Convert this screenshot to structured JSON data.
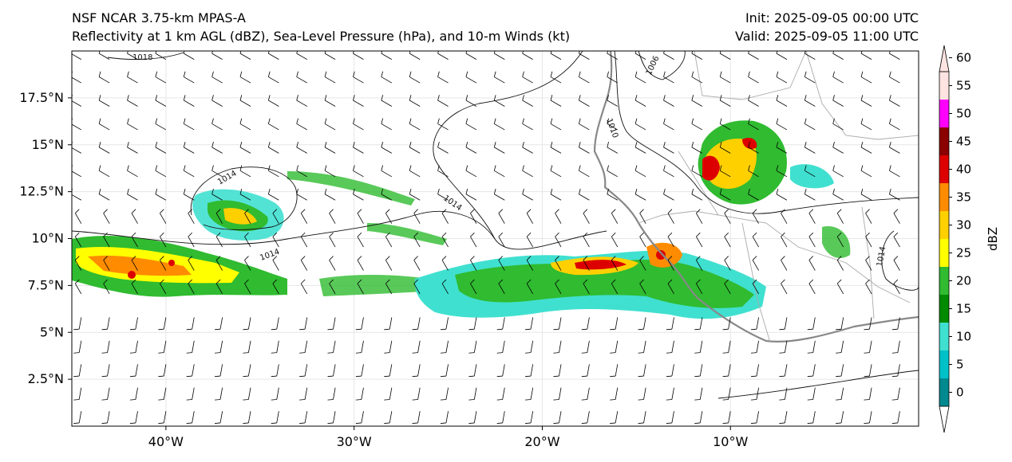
{
  "header": {
    "title_left_line1": "NSF NCAR 3.75-km MPAS-A",
    "title_left_line2": "Reflectivity at 1 km AGL (dBZ), Sea-Level Pressure (hPa), and 10-m Winds (kt)",
    "title_right_line1": "Init: 2025-09-05 00:00 UTC",
    "title_right_line2": "Valid: 2025-09-05 11:00 UTC"
  },
  "map": {
    "lon_range": [
      -45,
      0
    ],
    "lat_range": [
      0,
      20
    ],
    "x_ticks": [
      {
        "value": -40,
        "label": "40°W"
      },
      {
        "value": -30,
        "label": "30°W"
      },
      {
        "value": -20,
        "label": "20°W"
      },
      {
        "value": -10,
        "label": "10°W"
      }
    ],
    "y_ticks": [
      {
        "value": 2.5,
        "label": "2.5°N"
      },
      {
        "value": 5,
        "label": "5°N"
      },
      {
        "value": 7.5,
        "label": "7.5°N"
      },
      {
        "value": 10,
        "label": "10°N"
      },
      {
        "value": 12.5,
        "label": "12.5°N"
      },
      {
        "value": 15,
        "label": "15°N"
      },
      {
        "value": 17.5,
        "label": "17.5°N"
      }
    ],
    "isobar_labels": [
      "1018",
      "1014",
      "1014",
      "1014",
      "1010",
      "1006",
      "1014"
    ]
  },
  "colorbar": {
    "label": "dBZ",
    "levels": [
      0,
      5,
      10,
      15,
      20,
      25,
      30,
      35,
      40,
      45,
      50,
      55,
      60
    ],
    "tick_labels": [
      "0",
      "5",
      "10",
      "15",
      "20",
      "25",
      "30",
      "35",
      "40",
      "45",
      "50",
      "55",
      "60"
    ],
    "colors": [
      "#00898f",
      "#00c0c8",
      "#40e0d0",
      "#008a00",
      "#30bb30",
      "#ffff00",
      "#ffd000",
      "#ff8c00",
      "#dd0000",
      "#8b0000",
      "#ff00ff",
      "#ffe4e1"
    ]
  }
}
